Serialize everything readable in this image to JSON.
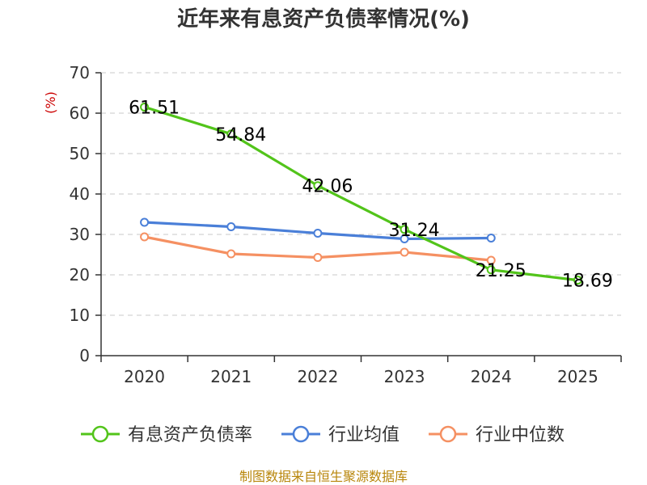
{
  "chart_data": {
    "type": "line",
    "title": "近年来有息资产负债率情况(%)",
    "ylabel": "(%)",
    "xlabel": "",
    "categories": [
      "2020",
      "2021",
      "2022",
      "2023",
      "2024",
      "2025"
    ],
    "ylim": [
      0,
      70
    ],
    "yticks": [
      0,
      10,
      20,
      30,
      40,
      50,
      60,
      70
    ],
    "grid": true,
    "legend_position": "bottom",
    "series": [
      {
        "name": "有息资产负债率",
        "color": "#52c41a",
        "values": [
          61.51,
          54.84,
          42.06,
          31.24,
          21.25,
          18.69
        ],
        "data_labels": [
          "61.51",
          "54.84",
          "42.06",
          "31.24",
          "21.25",
          "18.69"
        ]
      },
      {
        "name": "行业均值",
        "color": "#4a7fd8",
        "values": [
          33.0,
          31.9,
          30.3,
          28.9,
          29.1,
          null
        ]
      },
      {
        "name": "行业中位数",
        "color": "#f59062",
        "values": [
          29.4,
          25.2,
          24.3,
          25.6,
          23.6,
          null
        ]
      }
    ],
    "source": "制图数据来自恒生聚源数据库"
  }
}
